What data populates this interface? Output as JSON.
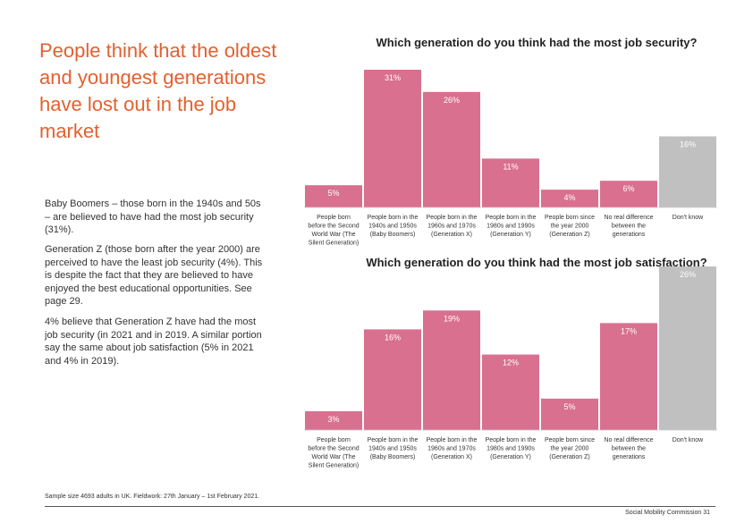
{
  "headline": "People think that the oldest and youngest generations have lost out in the job market",
  "paragraphs": [
    "Baby Boomers – those born in the 1940s and 50s – are believed to have had the most job security (31%).",
    "Generation Z (those born after the year 2000) are perceived to have the least job security (4%). This is despite the fact that they are believed to have enjoyed the best educational opportunities. See page 29.",
    "4% believe that Generation Z have had the most job security (in 2021 and in 2019. A similar portion say the same about job satisfaction (5% in 2021 and 4% in 2019)."
  ],
  "footer": {
    "note": "Sample size 4693 adults in UK. Fieldwork: 27th January – 1st February 2021.",
    "right": "Social Mobility Commission  31"
  },
  "colors": {
    "bar": "#d9708f",
    "bar_other": "#c0c0c0",
    "headline": "#e4602f",
    "grid": "#dddddd"
  },
  "chart_data": [
    {
      "type": "bar",
      "title": "Which generation do you think had the most job security?",
      "categories": [
        "People born before the Second World War (The Silent Generation)",
        "People born in the 1940s and 1950s (Baby Boomers)",
        "People born in the 1960s and 1970s (Generation X)",
        "People born in the 1980s and 1990s (Generation Y)",
        "People born since the year 2000 (Generation Z)",
        "No real difference between the generations",
        "Don't know"
      ],
      "category_lines": [
        [
          "People born",
          "before the Second",
          "World War (The",
          "Silent Generation)"
        ],
        [
          "People born in the",
          "1940s and 1950s",
          "(Baby Boomers)"
        ],
        [
          "People born in the",
          "1960s and 1970s",
          "(Generation X)"
        ],
        [
          "People born in the",
          "1980s and 1990s",
          "(Generation Y)"
        ],
        [
          "People born since",
          "the year 2000",
          "(Generation Z)"
        ],
        [
          "No real difference",
          "between the",
          "generations"
        ],
        [
          "Don't know"
        ]
      ],
      "values": [
        5,
        31,
        26,
        11,
        4,
        6,
        16
      ],
      "value_labels": [
        "5%",
        "31%",
        "26%",
        "11%",
        "4%",
        "6%",
        "16%"
      ],
      "ylim": [
        0,
        31
      ]
    },
    {
      "type": "bar",
      "title": "Which generation do you think had the most job satisfaction?",
      "categories": [
        "People born before the Second World War (The Silent Generation)",
        "People born in the 1940s and 1950s (Baby Boomers)",
        "People born in the 1960s and 1970s (Generation X)",
        "People born in the 1980s and 1990s (Generation Y)",
        "People born since the year 2000 (Generation Z)",
        "No real difference between the generations",
        "Don't know"
      ],
      "category_lines": [
        [
          "People born",
          "before the Second",
          "World War (The",
          "Silent Generation)"
        ],
        [
          "People born in the",
          "1940s and 1950s",
          "(Baby Boomers)"
        ],
        [
          "People born in the",
          "1960s and 1970s",
          "(Generation X)"
        ],
        [
          "People born in the",
          "1980s and 1990s",
          "(Generation Y)"
        ],
        [
          "People born since",
          "the year 2000",
          "(Generation Z)"
        ],
        [
          "No real difference",
          "between the",
          "generations"
        ],
        [
          "Don't know"
        ]
      ],
      "values": [
        3,
        16,
        19,
        12,
        5,
        17,
        26
      ],
      "value_labels": [
        "3%",
        "16%",
        "19%",
        "12%",
        "5%",
        "17%",
        "26%"
      ],
      "ylim": [
        0,
        26
      ]
    }
  ]
}
